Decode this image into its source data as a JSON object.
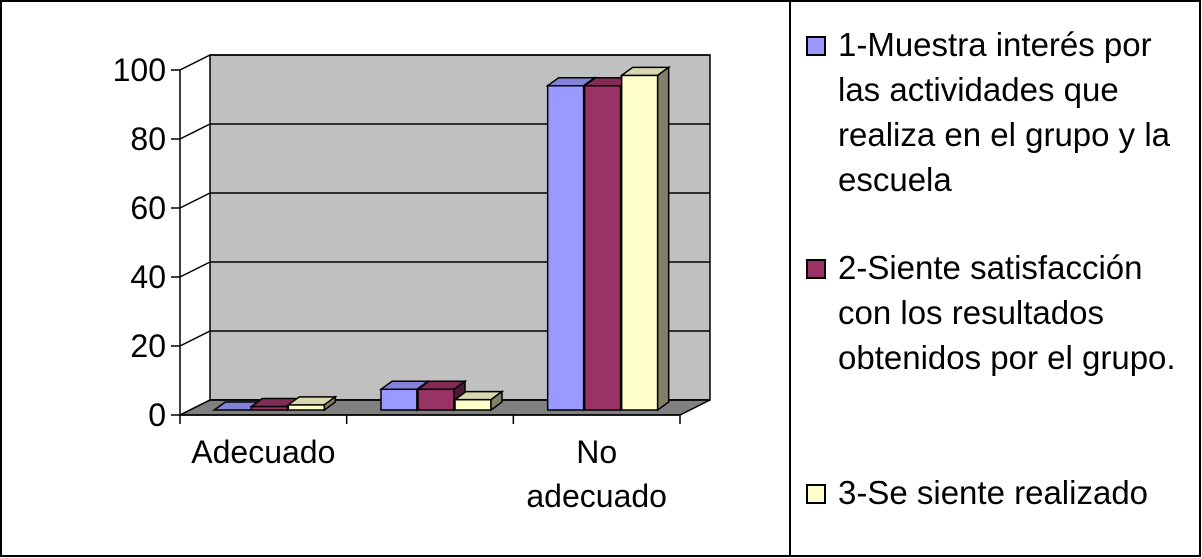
{
  "chart_data": {
    "type": "bar3d",
    "categories": [
      "Adecuado",
      null,
      "No adecuado"
    ],
    "series": [
      {
        "name": "1-Muestra interés por las actividades que realiza en  el grupo y la escuela",
        "color": "#9999ff",
        "values": [
          0,
          6,
          94
        ]
      },
      {
        "name": "2-Siente satisfacción con los resultados obtenidos por el grupo.",
        "color": "#993366",
        "values": [
          1,
          6,
          94
        ]
      },
      {
        "name": "3-Se siente realizado",
        "color": "#ffffcc",
        "values": [
          1.5,
          3,
          97
        ]
      }
    ],
    "ylim": [
      0,
      100
    ],
    "yticks": [
      0,
      20,
      40,
      60,
      80,
      100
    ],
    "grid": true,
    "legend": "right"
  }
}
